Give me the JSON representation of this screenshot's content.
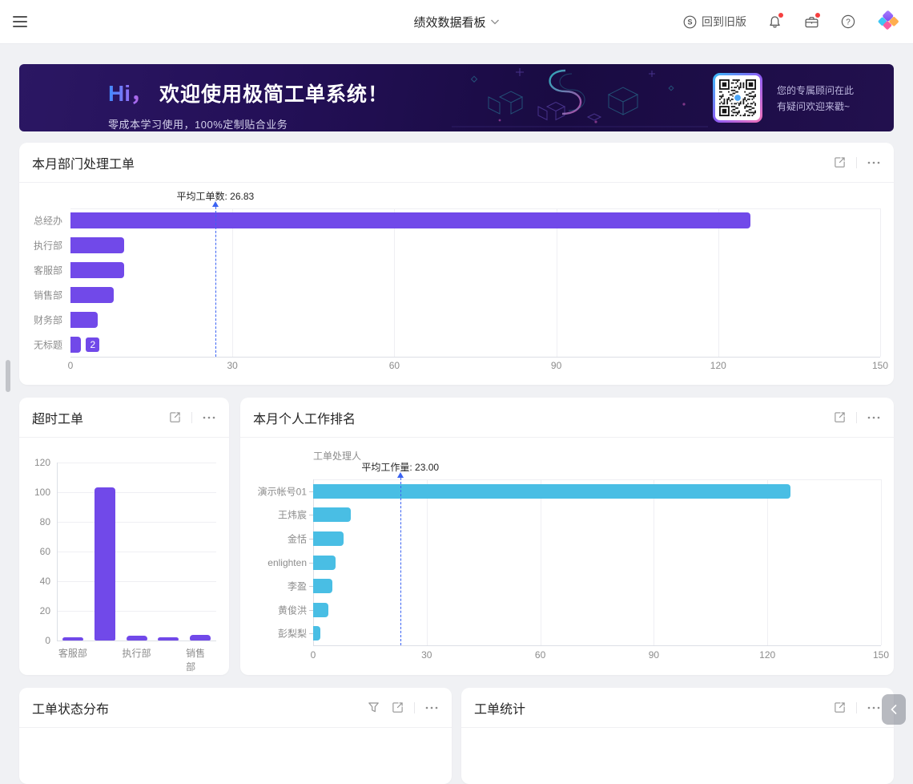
{
  "navbar": {
    "title": "绩效数据看板",
    "back_to_old_label": "回到旧版"
  },
  "banner": {
    "greeting": "Hi，",
    "title": "欢迎使用极简工单系统！",
    "subtitle": "零成本学习使用，100%定制贴合业务",
    "qr_caption_line1": "您的专属顾问在此",
    "qr_caption_line2": "有疑问欢迎来戳~"
  },
  "cards": {
    "status": {
      "title": "工单状态分布"
    },
    "stats": {
      "title": "工单统计"
    }
  },
  "chart_data": [
    {
      "id": "dept",
      "type": "bar",
      "orientation": "horizontal",
      "title": "本月部门处理工单",
      "categories": [
        "总经办",
        "执行部",
        "客服部",
        "销售部",
        "财务部",
        "无标题"
      ],
      "values": [
        126,
        10,
        10,
        8,
        5,
        2
      ],
      "xlim": [
        0,
        150
      ],
      "xticks": [
        0,
        30,
        60,
        90,
        120,
        150
      ],
      "bar_color": "#7149E9",
      "average_line": {
        "value": 26.83,
        "label": "平均工单数: 26.83"
      },
      "badge": {
        "index": 5,
        "text": "2"
      },
      "grid": true,
      "legend": "none"
    },
    {
      "id": "overtime",
      "type": "bar",
      "orientation": "vertical",
      "title": "超时工单",
      "categories": [
        "客服部",
        "",
        "执行部",
        "",
        "销售部"
      ],
      "values": [
        2,
        103,
        3,
        2,
        4
      ],
      "ylim": [
        0,
        120
      ],
      "yticks": [
        0,
        20,
        40,
        60,
        80,
        100,
        120
      ],
      "bar_color": "#7149E9",
      "grid": true,
      "legend": "none"
    },
    {
      "id": "personal",
      "type": "bar",
      "orientation": "horizontal",
      "title": "本月个人工作排名",
      "axis_title": "工单处理人",
      "categories": [
        "演示帐号01",
        "王炜宸",
        "金恬",
        "enlighten",
        "李盈",
        "黄俊洪",
        "彭梨梨"
      ],
      "values": [
        126,
        10,
        8,
        6,
        5,
        4,
        2
      ],
      "xlim": [
        0,
        150
      ],
      "xticks": [
        0,
        30,
        60,
        90,
        120,
        150
      ],
      "bar_color": "#49BEE4",
      "average_line": {
        "value": 23.0,
        "label": "平均工作量: 23.00"
      },
      "grid": true,
      "legend": "none"
    }
  ],
  "colors": {
    "purple_bar": "#7149E9",
    "cyan_bar": "#49BEE4",
    "average_line": "#3B63F3",
    "page_bg": "#F0F1F4",
    "banner_bg": "#22104E",
    "notification_dot": "#F53F3F",
    "logo_purple": "#8B5CF6",
    "logo_cyan": "#3EC6F4",
    "logo_orange": "#FFAE4E",
    "logo_pink": "#F95C9F"
  },
  "icons": {
    "menu": "hamburger-menu",
    "title_chevron": "chevron-down",
    "version": "circled-s",
    "bell": "notification-bell",
    "briefcase": "workbench-briefcase",
    "help": "question-circle",
    "logo": "four-diamond-logo",
    "expand": "open-in-new-window",
    "more": "ellipsis-more",
    "filter": "funnel-filter",
    "collapse": "chevron-left"
  }
}
